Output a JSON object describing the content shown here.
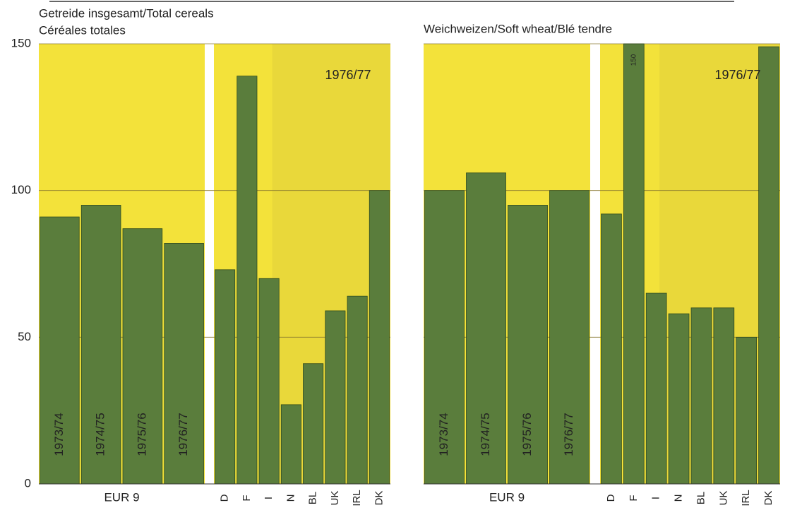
{
  "chart_data": [
    {
      "type": "bar",
      "title": [
        "Getreide insgesamt/Total cereals",
        "Céréales totales"
      ],
      "group_label": "EUR 9",
      "annotation": "1976/77",
      "categories": [
        "1973/74",
        "1974/75",
        "1975/76",
        "1976/77",
        "D",
        "F",
        "I",
        "N",
        "BL",
        "UK",
        "IRL",
        "DK"
      ],
      "values": [
        91,
        95,
        87,
        82,
        73,
        139,
        70,
        27,
        41,
        59,
        64,
        100
      ],
      "color": "#5a7d3c",
      "ylim": [
        0,
        150
      ],
      "yticks": [
        0,
        50,
        100,
        150
      ],
      "grid": true
    },
    {
      "type": "bar",
      "title": [
        "Weichweizen/Soft wheat/Blé tendre"
      ],
      "group_label": "EUR 9",
      "annotation": "1976/77",
      "categories": [
        "1973/74",
        "1974/75",
        "1975/76",
        "1976/77",
        "D",
        "F",
        "I",
        "N",
        "BL",
        "UK",
        "IRL",
        "DK"
      ],
      "values": [
        100,
        106,
        95,
        100,
        92,
        150,
        65,
        58,
        60,
        60,
        50,
        149
      ],
      "color": "#5a7d3c",
      "ylim": [
        0,
        150
      ],
      "yticks": [
        0,
        50,
        100,
        150
      ],
      "grid": true
    }
  ]
}
